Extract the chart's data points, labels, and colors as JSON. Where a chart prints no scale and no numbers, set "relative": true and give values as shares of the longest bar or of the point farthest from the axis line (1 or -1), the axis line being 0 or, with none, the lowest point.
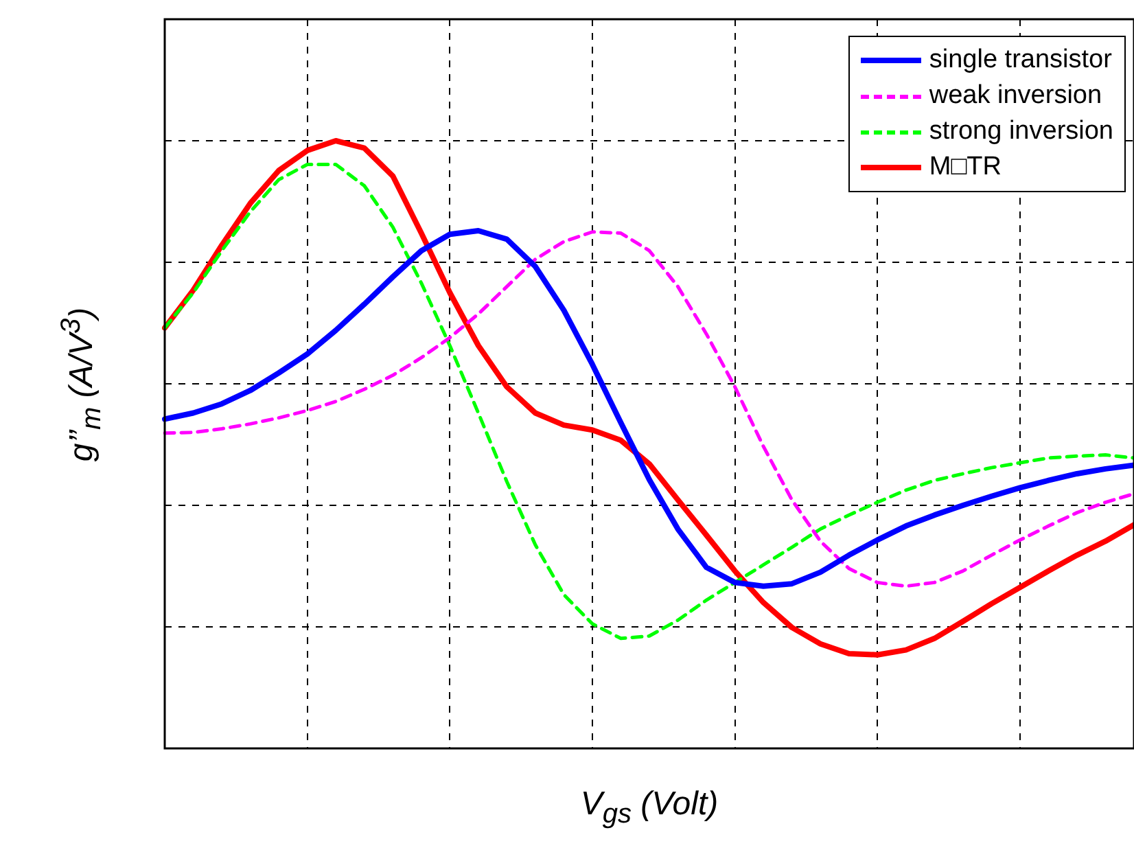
{
  "chart_data": {
    "type": "line",
    "relative": true,
    "xlabel": "V$_{gs}$ (Volt)",
    "ylabel": "g’’$_{m}$ (A/V$^{3}$)",
    "categories": [
      null,
      null,
      null,
      null,
      null,
      null,
      null,
      null,
      null,
      null,
      null,
      null,
      null,
      null,
      null,
      null,
      null,
      null,
      null,
      null,
      null,
      null,
      null,
      null,
      null,
      null,
      null,
      null,
      null,
      null,
      null,
      null,
      null,
      null,
      null
    ],
    "series": [
      {
        "name": "single transistor",
        "color": "#0000ff",
        "line_style": "solid",
        "values": [
          0.542,
          0.552,
          0.567,
          0.589,
          0.618,
          0.649,
          0.688,
          0.731,
          0.776,
          0.819,
          0.846,
          0.852,
          0.838,
          0.793,
          0.721,
          0.632,
          0.536,
          0.442,
          0.361,
          0.298,
          0.273,
          0.267,
          0.271,
          0.29,
          0.318,
          0.343,
          0.366,
          0.384,
          0.4,
          0.415,
          0.429,
          0.441,
          0.452,
          0.46,
          0.466
        ]
      },
      {
        "name": "weak inversion",
        "color": "#ff00ff",
        "line_style": "dashed",
        "values": [
          0.519,
          0.52,
          0.526,
          0.534,
          0.544,
          0.556,
          0.571,
          0.591,
          0.614,
          0.643,
          0.676,
          0.715,
          0.76,
          0.805,
          0.834,
          0.85,
          0.848,
          0.819,
          0.76,
          0.682,
          0.595,
          0.497,
          0.409,
          0.341,
          0.296,
          0.273,
          0.267,
          0.273,
          0.292,
          0.318,
          0.343,
          0.366,
          0.388,
          0.405,
          0.419
        ]
      },
      {
        "name": "strong inversion",
        "color": "#00ff00",
        "line_style": "dashed",
        "values": [
          0.692,
          0.75,
          0.819,
          0.883,
          0.936,
          0.961,
          0.961,
          0.926,
          0.858,
          0.766,
          0.663,
          0.552,
          0.439,
          0.335,
          0.253,
          0.205,
          0.181,
          0.185,
          0.211,
          0.244,
          0.273,
          0.302,
          0.331,
          0.361,
          0.384,
          0.405,
          0.425,
          0.441,
          0.452,
          0.462,
          0.47,
          0.478,
          0.481,
          0.483,
          0.478
        ]
      },
      {
        "name": "M□TR",
        "color": "#ff0000",
        "line_style": "solid",
        "values": [
          0.692,
          0.754,
          0.828,
          0.897,
          0.951,
          0.984,
          1,
          0.988,
          0.942,
          0.848,
          0.75,
          0.663,
          0.595,
          0.552,
          0.532,
          0.524,
          0.507,
          0.468,
          0.409,
          0.351,
          0.292,
          0.24,
          0.199,
          0.172,
          0.156,
          0.154,
          0.162,
          0.181,
          0.209,
          0.238,
          0.265,
          0.292,
          0.318,
          0.341,
          0.368
        ]
      }
    ],
    "grid": true,
    "legend": "top right",
    "marker": "none",
    "tick_labels": false
  }
}
